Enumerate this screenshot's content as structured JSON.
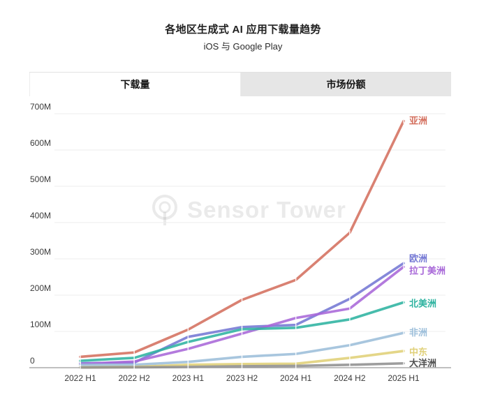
{
  "header": {
    "title": "各地区生成式 AI 应用下载量趋势",
    "subtitle": "iOS 与 Google Play"
  },
  "tabs": [
    {
      "label": "下载量",
      "active": true
    },
    {
      "label": "市场份额",
      "active": false
    }
  ],
  "watermark": {
    "text": "Sensor Tower"
  },
  "chart_data": {
    "type": "line",
    "title": "各地区生成式 AI 应用下载量趋势",
    "subtitle": "iOS 与 Google Play",
    "categories": [
      "2022 H1",
      "2022 H2",
      "2023 H1",
      "2023 H2",
      "2024 H1",
      "2024 H2",
      "2025 H1"
    ],
    "y_ticks": [
      "0",
      "100M",
      "200M",
      "300M",
      "400M",
      "500M",
      "600M",
      "700M"
    ],
    "ylim": [
      0,
      700
    ],
    "unit": "M",
    "grid": true,
    "legend_position": "right-line-end-labels",
    "series": [
      {
        "name": "亚洲",
        "color": "#d4705f",
        "values": [
          30,
          42,
          105,
          187,
          242,
          372,
          680
        ]
      },
      {
        "name": "欧洲",
        "color": "#7478d4",
        "values": [
          12,
          14,
          85,
          112,
          118,
          190,
          288
        ]
      },
      {
        "name": "拉丁美洲",
        "color": "#a868d8",
        "values": [
          10,
          17,
          52,
          94,
          137,
          163,
          278
        ]
      },
      {
        "name": "北美洲",
        "color": "#2eb3a0",
        "values": [
          19,
          27,
          71,
          106,
          110,
          133,
          180
        ]
      },
      {
        "name": "非洲",
        "color": "#9cbeda",
        "values": [
          8,
          8,
          16,
          30,
          38,
          62,
          96
        ]
      },
      {
        "name": "中东",
        "color": "#e0d078",
        "values": [
          1,
          2,
          8,
          10,
          11,
          27,
          46
        ]
      },
      {
        "name": "大洋洲",
        "color": "#909090",
        "label_color": "#4f4f4f",
        "values": [
          0.5,
          1,
          2,
          4,
          5,
          8,
          12
        ]
      }
    ]
  }
}
